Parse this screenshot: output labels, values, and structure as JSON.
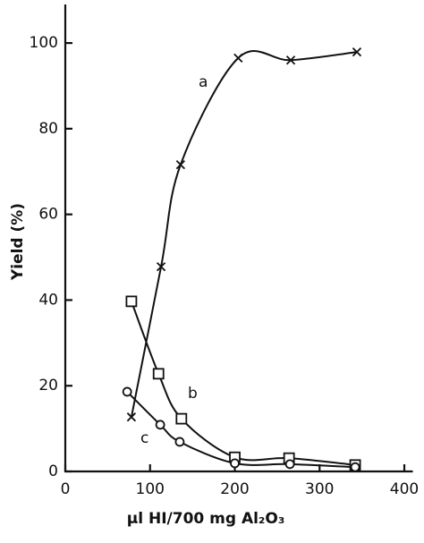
{
  "chart_data": {
    "type": "line",
    "x_label": "μl HI/700 mg Al₂O₃",
    "y_label": "Yield (%)",
    "xlim": [
      0,
      410
    ],
    "ylim": [
      0,
      109
    ],
    "xticks": [
      0,
      100,
      200,
      300,
      400
    ],
    "yticks": [
      0,
      20,
      40,
      60,
      80,
      100
    ],
    "series": [
      {
        "name": "a",
        "marker": "x",
        "color": "#111111",
        "x": [
          78,
          113,
          136,
          204,
          266,
          344
        ],
        "values": [
          12.7,
          47.8,
          71.6,
          96.5,
          96,
          97.9
        ]
      },
      {
        "name": "b",
        "marker": "square",
        "color": "#111111",
        "x": [
          78,
          110,
          137,
          200,
          264,
          342
        ],
        "values": [
          39.7,
          22.8,
          12.3,
          3.3,
          3.1,
          1.5
        ]
      },
      {
        "name": "c",
        "marker": "circle",
        "color": "#111111",
        "x": [
          73,
          112,
          135,
          200,
          265,
          342
        ],
        "values": [
          18.6,
          10.9,
          6.9,
          1.9,
          1.7,
          1
        ]
      }
    ]
  }
}
